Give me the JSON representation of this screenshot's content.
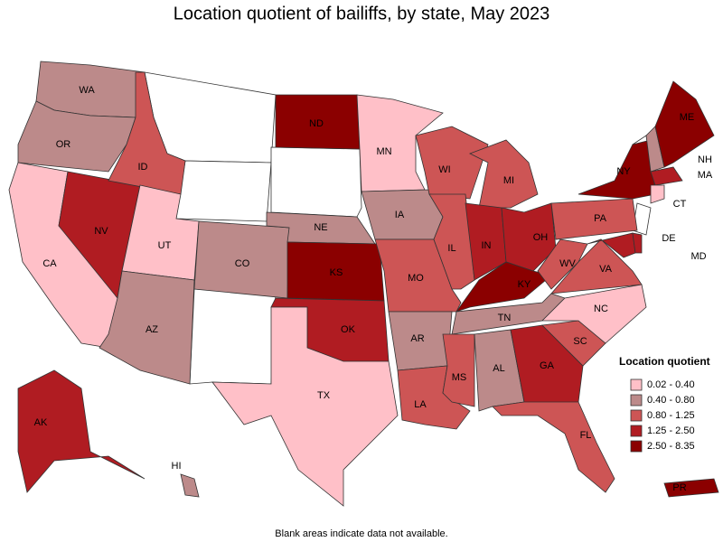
{
  "title": "Location quotient of bailiffs, by state, May 2023",
  "legend": {
    "title": "Location quotient",
    "items": [
      {
        "label": "0.02 - 0.40",
        "color": "#ffc0c8"
      },
      {
        "label": "0.40 - 0.80",
        "color": "#bc8a8a"
      },
      {
        "label": "0.80 - 1.25",
        "color": "#cd5555"
      },
      {
        "label": "1.25 - 2.50",
        "color": "#b01c22"
      },
      {
        "label": "2.50 - 8.35",
        "color": "#8b0000"
      }
    ]
  },
  "states": [
    {
      "label": "WA",
      "bin": 1
    },
    {
      "label": "OR",
      "bin": 1
    },
    {
      "label": "CA",
      "bin": 0
    },
    {
      "label": "NV",
      "bin": 3
    },
    {
      "label": "ID",
      "bin": 2
    },
    {
      "label": "UT",
      "bin": 0
    },
    {
      "label": "AZ",
      "bin": 1
    },
    {
      "label": "CO",
      "bin": 1
    },
    {
      "label": "ND",
      "bin": 4
    },
    {
      "label": "NE",
      "bin": 1
    },
    {
      "label": "KS",
      "bin": 4
    },
    {
      "label": "OK",
      "bin": 3
    },
    {
      "label": "TX",
      "bin": 0
    },
    {
      "label": "MN",
      "bin": 0
    },
    {
      "label": "IA",
      "bin": 1
    },
    {
      "label": "MO",
      "bin": 2
    },
    {
      "label": "AR",
      "bin": 1
    },
    {
      "label": "LA",
      "bin": 2
    },
    {
      "label": "WI",
      "bin": 2
    },
    {
      "label": "IL",
      "bin": 2
    },
    {
      "label": "MI",
      "bin": 2
    },
    {
      "label": "IN",
      "bin": 3
    },
    {
      "label": "OH",
      "bin": 3
    },
    {
      "label": "KY",
      "bin": 4
    },
    {
      "label": "TN",
      "bin": 1
    },
    {
      "label": "MS",
      "bin": 2
    },
    {
      "label": "AL",
      "bin": 1
    },
    {
      "label": "GA",
      "bin": 3
    },
    {
      "label": "FL",
      "bin": 2
    },
    {
      "label": "SC",
      "bin": 2
    },
    {
      "label": "NC",
      "bin": 0
    },
    {
      "label": "VA",
      "bin": 2
    },
    {
      "label": "WV",
      "bin": 2
    },
    {
      "label": "PA",
      "bin": 2
    },
    {
      "label": "NY",
      "bin": 4
    },
    {
      "label": "NH",
      "bin": 1
    },
    {
      "label": "ME",
      "bin": 4
    },
    {
      "label": "MA",
      "bin": 3
    },
    {
      "label": "CT",
      "bin": 0
    },
    {
      "label": "MD",
      "bin": 3
    },
    {
      "label": "DE",
      "bin": 3
    },
    {
      "label": "AK",
      "bin": 3
    },
    {
      "label": "HI",
      "bin": 1
    },
    {
      "label": "PR",
      "bin": 4
    }
  ],
  "footnote": "Blank areas indicate data not available."
}
